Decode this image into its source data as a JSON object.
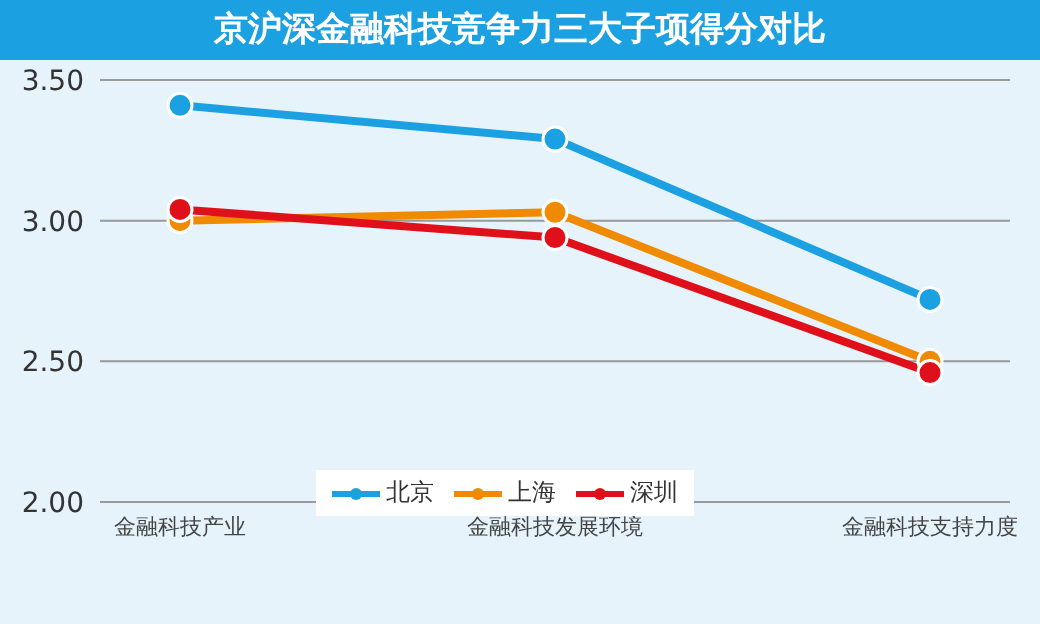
{
  "chart_data": {
    "type": "line",
    "title": "京沪深金融科技竞争力三大子项得分对比",
    "categories": [
      "金融科技产业",
      "金融科技发展环境",
      "金融科技支持力度"
    ],
    "series": [
      {
        "name": "北京",
        "color": "#1ba1e2",
        "values": [
          3.41,
          3.29,
          2.72
        ]
      },
      {
        "name": "上海",
        "color": "#f08a00",
        "values": [
          3.0,
          3.03,
          2.5
        ]
      },
      {
        "name": "深圳",
        "color": "#e0101a",
        "values": [
          3.04,
          2.94,
          2.46
        ]
      }
    ],
    "ylim": [
      2.0,
      3.5
    ],
    "yticks": [
      {
        "value": 2,
        "label": "2.00"
      },
      {
        "value": 2.5,
        "label": "2.50"
      },
      {
        "value": 3,
        "label": "3.00"
      },
      {
        "value": 3.5,
        "label": "3.50"
      }
    ],
    "grid": "y",
    "legend": "bottom",
    "marker": "circle",
    "line_style": "solid"
  }
}
